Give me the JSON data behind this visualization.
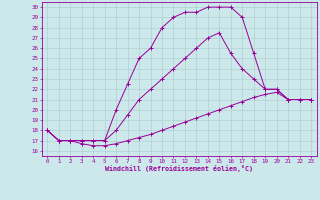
{
  "xlabel": "Windchill (Refroidissement éolien,°C)",
  "background_color": "#cce8ea",
  "grid_color": "#aacccc",
  "line_color": "#990099",
  "xlim": [
    -0.5,
    23.5
  ],
  "ylim": [
    15.5,
    30.5
  ],
  "xticks": [
    0,
    1,
    2,
    3,
    4,
    5,
    6,
    7,
    8,
    9,
    10,
    11,
    12,
    13,
    14,
    15,
    16,
    17,
    18,
    19,
    20,
    21,
    22,
    23
  ],
  "yticks": [
    16,
    17,
    18,
    19,
    20,
    21,
    22,
    23,
    24,
    25,
    26,
    27,
    28,
    29,
    30
  ],
  "curve1_x": [
    0,
    1,
    2,
    3,
    4,
    5,
    6,
    7,
    8,
    9,
    10,
    11,
    12,
    13,
    14,
    15,
    16,
    17,
    18,
    19,
    20,
    21,
    22,
    23
  ],
  "curve1_y": [
    18,
    17,
    17,
    16.7,
    16.5,
    16.5,
    16.7,
    17,
    17.3,
    17.6,
    18,
    18.4,
    18.8,
    19.2,
    19.6,
    20,
    20.4,
    20.8,
    21.2,
    21.5,
    21.7,
    21,
    21,
    21
  ],
  "curve2_x": [
    0,
    1,
    2,
    3,
    4,
    5,
    6,
    7,
    8,
    9,
    10,
    11,
    12,
    13,
    14,
    15,
    16,
    17,
    18,
    19,
    20,
    21,
    22,
    23
  ],
  "curve2_y": [
    18,
    17,
    17,
    17,
    17,
    17,
    18,
    19.5,
    21,
    22,
    23,
    24,
    25,
    26,
    27,
    27.5,
    25.5,
    24,
    23,
    22,
    22,
    21,
    21,
    21
  ],
  "curve3_x": [
    0,
    1,
    2,
    3,
    4,
    5,
    6,
    7,
    8,
    9,
    10,
    11,
    12,
    13,
    14,
    15,
    16,
    17,
    18,
    19,
    20,
    21,
    22,
    23
  ],
  "curve3_y": [
    18,
    17,
    17,
    17,
    17,
    17,
    20,
    22.5,
    25,
    26,
    28,
    29,
    29.5,
    29.5,
    30,
    30,
    30,
    29,
    25.5,
    22,
    22,
    21,
    21,
    21
  ]
}
